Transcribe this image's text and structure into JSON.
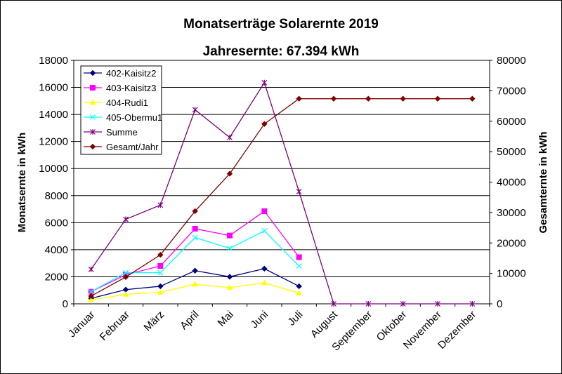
{
  "chart_data": {
    "type": "line",
    "title": "Monatserträge Solarernte 2019",
    "subtitle": "Jahresernte: 67.394 kWh",
    "ylabel": "Monatsernte in kWh",
    "y2label": "Gesamternte in kWh",
    "categories": [
      "Januar",
      "Februar",
      "März",
      "April",
      "Mai",
      "Juni",
      "Juli",
      "August",
      "September",
      "Oktober",
      "November",
      "Dezember"
    ],
    "ylim": [
      0,
      18000
    ],
    "yticks": [
      "0",
      "2000",
      "4000",
      "6000",
      "8000",
      "10000",
      "12000",
      "14000",
      "16000",
      "18000"
    ],
    "y2lim": [
      0,
      80000
    ],
    "y2ticks": [
      "0",
      "10000",
      "20000",
      "30000",
      "40000",
      "50000",
      "60000",
      "70000",
      "80000"
    ],
    "grid": true,
    "legend_position": "top-left",
    "series": [
      {
        "name": "402-Kaisitz2",
        "axis": "left",
        "color": "#000080",
        "marker": "diamond",
        "values": [
          400,
          1050,
          1300,
          2450,
          2000,
          2600,
          1300,
          null,
          null,
          null,
          null,
          null
        ]
      },
      {
        "name": "403-Kaisitz3",
        "axis": "left",
        "color": "#ff00ff",
        "marker": "square",
        "values": [
          900,
          2150,
          2800,
          5550,
          5050,
          6850,
          3450,
          null,
          null,
          null,
          null,
          null
        ]
      },
      {
        "name": "404-Rudi1",
        "axis": "left",
        "color": "#ffff00",
        "marker": "triangle",
        "values": [
          300,
          700,
          850,
          1450,
          1200,
          1550,
          800,
          null,
          null,
          null,
          null,
          null
        ]
      },
      {
        "name": "405-Obermu1",
        "axis": "left",
        "color": "#00ffff",
        "marker": "x",
        "values": [
          900,
          2300,
          2300,
          4900,
          4100,
          5400,
          2800,
          null,
          null,
          null,
          null,
          null
        ]
      },
      {
        "name": "Summe",
        "axis": "left",
        "color": "#800080",
        "marker": "star",
        "values": [
          2550,
          6250,
          7300,
          14350,
          12300,
          16350,
          8300,
          0,
          0,
          0,
          0,
          0
        ]
      },
      {
        "name": "Gesamt/Jahr",
        "axis": "right",
        "color": "#800000",
        "marker": "diamond",
        "values": [
          2550,
          8800,
          16100,
          30450,
          42750,
          59100,
          67394,
          67394,
          67394,
          67394,
          67394,
          67394
        ]
      }
    ]
  }
}
